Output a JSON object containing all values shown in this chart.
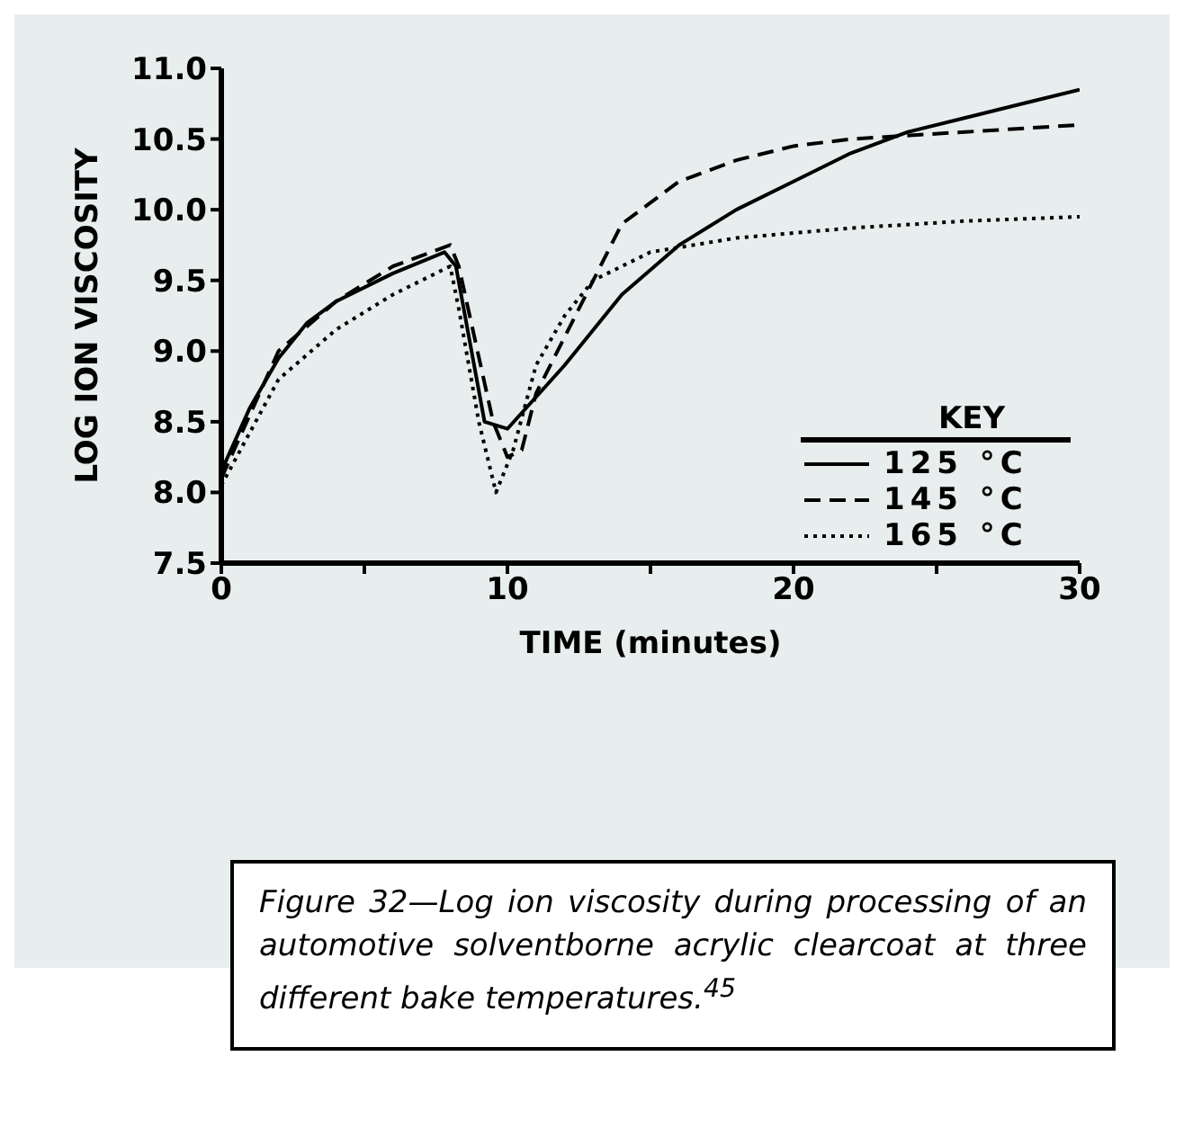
{
  "chart_data": {
    "type": "line",
    "xlabel": "TIME (minutes)",
    "ylabel": "LOG ION VISCOSITY",
    "legend_title": "KEY",
    "legend": "bottom right",
    "grid": false,
    "marker": "none",
    "xlim": [
      0,
      30
    ],
    "xticks": [
      0,
      {
        "value": 5,
        "label": null
      },
      10,
      {
        "value": 15,
        "label": null
      },
      20,
      {
        "value": 25,
        "label": null
      },
      30
    ],
    "ylim": [
      7.5,
      11.0
    ],
    "yticks": [
      {
        "value": 7.5,
        "label": "7.5"
      },
      {
        "value": 8,
        "label": "8.0"
      },
      {
        "value": 8.5,
        "label": "8.5"
      },
      {
        "value": 9,
        "label": "9.0"
      },
      {
        "value": 9.5,
        "label": "9.5"
      },
      {
        "value": 10,
        "label": "10.0"
      },
      {
        "value": 10.5,
        "label": "10.5"
      },
      {
        "value": 11,
        "label": "11.0"
      }
    ],
    "series": [
      {
        "name": "125 °C",
        "color": "#000000",
        "line_style": "solid",
        "x": [
          0,
          1,
          2,
          3,
          4,
          6,
          7.8,
          8.2,
          9.2,
          10,
          12,
          14,
          16,
          18,
          20,
          22,
          24,
          26,
          28,
          30
        ],
        "values": [
          8.15,
          8.6,
          8.95,
          9.2,
          9.35,
          9.55,
          9.7,
          9.6,
          8.5,
          8.45,
          8.9,
          9.4,
          9.75,
          10.0,
          10.2,
          10.4,
          10.55,
          10.65,
          10.75,
          10.85
        ]
      },
      {
        "name": "145 °C",
        "color": "#000000",
        "line_style": "dashed",
        "x": [
          0,
          2,
          4,
          6,
          8,
          8.3,
          9.5,
          10,
          10.5,
          11,
          12,
          13,
          14,
          16,
          18,
          20,
          22,
          26,
          30
        ],
        "values": [
          8.1,
          9.0,
          9.35,
          9.6,
          9.75,
          9.6,
          8.5,
          8.25,
          8.3,
          8.7,
          9.1,
          9.5,
          9.9,
          10.2,
          10.35,
          10.45,
          10.5,
          10.55,
          10.6
        ]
      },
      {
        "name": "165 °C",
        "color": "#000000",
        "line_style": "dotted",
        "x": [
          0,
          2,
          4,
          6,
          8,
          8.3,
          9,
          9.6,
          10.2,
          11,
          12,
          13,
          14,
          15,
          18,
          22,
          26,
          30
        ],
        "values": [
          8.05,
          8.8,
          9.15,
          9.4,
          9.6,
          9.3,
          8.5,
          8.0,
          8.3,
          8.9,
          9.25,
          9.5,
          9.6,
          9.7,
          9.8,
          9.87,
          9.92,
          9.95
        ]
      }
    ],
    "annotations": [
      "Figure 32—Log ion viscosity during processing of an automotive solventborne acrylic clearcoat at three different bake temperatures.$^{45}$"
    ]
  }
}
